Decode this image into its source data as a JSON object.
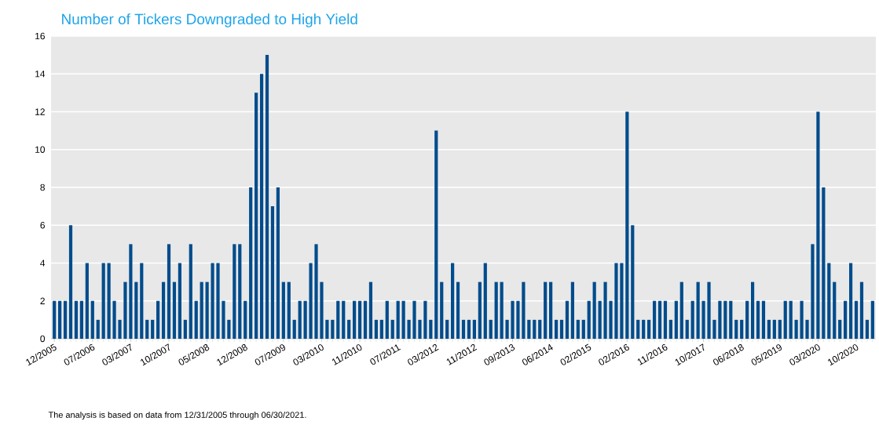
{
  "chart_data": {
    "type": "bar",
    "title": "Number of Tickers Downgraded to High Yield",
    "categories": [
      "12/2005",
      null,
      null,
      null,
      null,
      null,
      null,
      "07/2006",
      null,
      null,
      null,
      null,
      null,
      null,
      "03/2007",
      null,
      null,
      null,
      null,
      null,
      null,
      "10/2007",
      null,
      null,
      null,
      null,
      null,
      null,
      "05/2008",
      null,
      null,
      null,
      null,
      null,
      null,
      "12/2008",
      null,
      null,
      null,
      null,
      null,
      null,
      "07/2009",
      null,
      null,
      null,
      null,
      null,
      null,
      "03/2010",
      null,
      null,
      null,
      null,
      null,
      null,
      "11/2010",
      null,
      null,
      null,
      null,
      null,
      null,
      "07/2011",
      null,
      null,
      null,
      null,
      null,
      null,
      "03/2012",
      null,
      null,
      null,
      null,
      null,
      null,
      "11/2012",
      null,
      null,
      null,
      null,
      null,
      null,
      "09/2013",
      null,
      null,
      null,
      null,
      null,
      null,
      "06/2014",
      null,
      null,
      null,
      null,
      null,
      null,
      "02/2015",
      null,
      null,
      null,
      null,
      null,
      null,
      "02/2016",
      null,
      null,
      null,
      null,
      null,
      null,
      "11/2016",
      null,
      null,
      null,
      null,
      null,
      null,
      "10/2017",
      null,
      null,
      null,
      null,
      null,
      null,
      "06/2018",
      null,
      null,
      null,
      null,
      null,
      null,
      "05/2019",
      null,
      null,
      null,
      null,
      null,
      null,
      "03/2020",
      null,
      null,
      null,
      null,
      null,
      null,
      "10/2020",
      null,
      null,
      null
    ],
    "values": [
      2,
      2,
      2,
      6,
      2,
      2,
      4,
      2,
      1,
      4,
      4,
      2,
      1,
      3,
      5,
      3,
      4,
      1,
      1,
      2,
      3,
      5,
      3,
      4,
      1,
      5,
      2,
      3,
      3,
      4,
      4,
      2,
      1,
      5,
      5,
      2,
      8,
      13,
      14,
      15,
      7,
      8,
      3,
      3,
      1,
      2,
      2,
      4,
      5,
      3,
      1,
      1,
      2,
      2,
      1,
      2,
      2,
      2,
      3,
      1,
      1,
      2,
      1,
      2,
      2,
      1,
      2,
      1,
      2,
      1,
      11,
      3,
      1,
      4,
      3,
      1,
      1,
      1,
      3,
      4,
      1,
      3,
      3,
      1,
      2,
      2,
      3,
      1,
      1,
      1,
      3,
      3,
      1,
      1,
      2,
      3,
      1,
      1,
      2,
      3,
      2,
      3,
      2,
      4,
      4,
      12,
      6,
      1,
      1,
      1,
      2,
      2,
      2,
      1,
      2,
      3,
      1,
      2,
      3,
      2,
      3,
      1,
      2,
      2,
      2,
      1,
      1,
      2,
      3,
      2,
      2,
      1,
      1,
      1,
      2,
      2,
      1,
      2,
      1,
      5,
      12,
      8,
      4,
      3,
      1,
      2,
      4,
      2,
      3,
      1,
      2
    ],
    "color": "#004c8c",
    "ylim": [
      0,
      16
    ],
    "yticks": [
      0,
      2,
      4,
      6,
      8,
      10,
      12,
      14,
      16
    ],
    "grid": "y",
    "annotations": [
      "The analysis is based on data from 12/31/2005 through 06/30/2021."
    ]
  }
}
